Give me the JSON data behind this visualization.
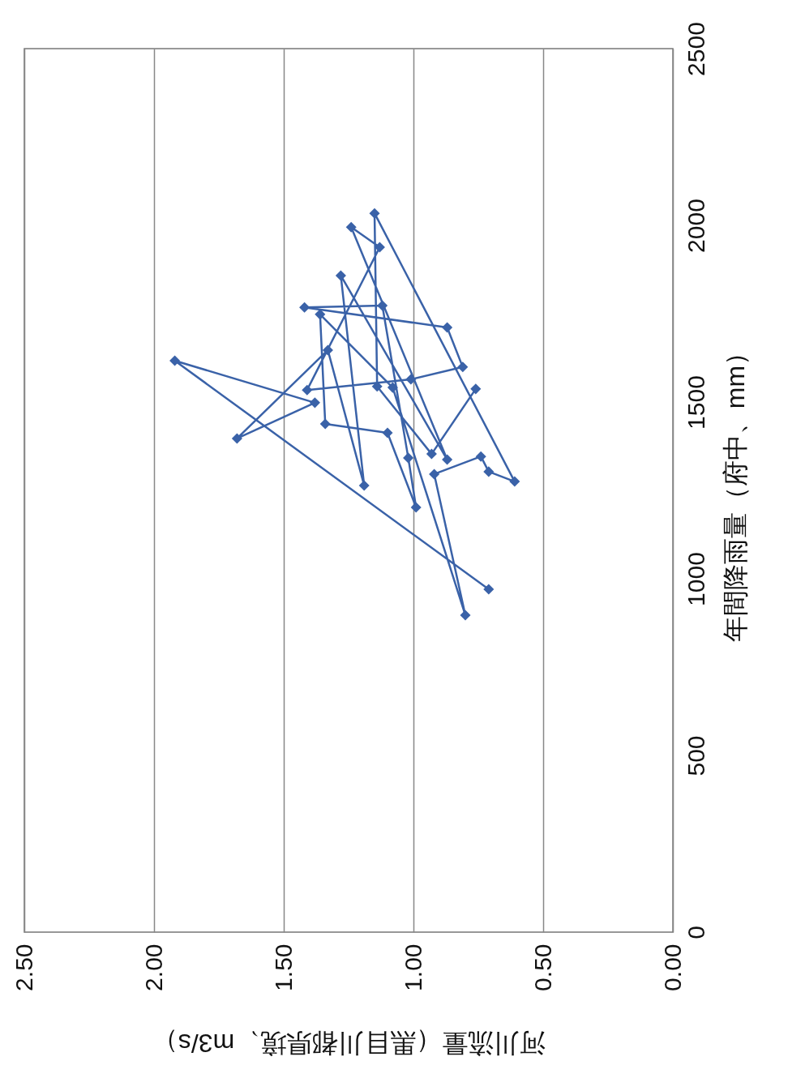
{
  "chart_data": {
    "type": "line",
    "xlabel": "河川流量（黒目川都県境、m3/s）",
    "ylabel": "年間降雨量（府中、mm）",
    "x": [
      0.71,
      1.92,
      1.38,
      1.68,
      1.33,
      1.19,
      1.28,
      0.87,
      1.24,
      1.13,
      1.41,
      1.01,
      0.81,
      0.87,
      1.42,
      1.12,
      1.02,
      0.99,
      1.1,
      1.34,
      1.36,
      1.08,
      0.8,
      0.92,
      0.74,
      0.71,
      0.61,
      1.15,
      1.14,
      0.93,
      0.76
    ],
    "series": [
      {
        "color": "#3a62a8",
        "values": [
          970,
          1617,
          1498,
          1397,
          1647,
          1264,
          1858,
          1337,
          1995,
          1938,
          1534,
          1564,
          1599,
          1711,
          1768,
          1773,
          1342,
          1202,
          1413,
          1438,
          1748,
          1541,
          897,
          1296,
          1346,
          1303,
          1275,
          2034,
          1544,
          1353,
          1537
        ]
      }
    ],
    "xlim": [
      2.5,
      0
    ],
    "xticks": [
      {
        "value": 2.5,
        "label": "2.50"
      },
      {
        "value": 2,
        "label": "2.00"
      },
      {
        "value": 1.5,
        "label": "1.50"
      },
      {
        "value": 1,
        "label": "1.00"
      },
      {
        "value": 0.5,
        "label": "0.50"
      },
      {
        "value": 0,
        "label": "0.00"
      }
    ],
    "ylim": [
      0,
      2500
    ],
    "yticks": [
      0,
      500,
      1000,
      1500,
      2000,
      2500
    ],
    "grid": "x",
    "marker": "diamond",
    "line_style": "solid"
  }
}
